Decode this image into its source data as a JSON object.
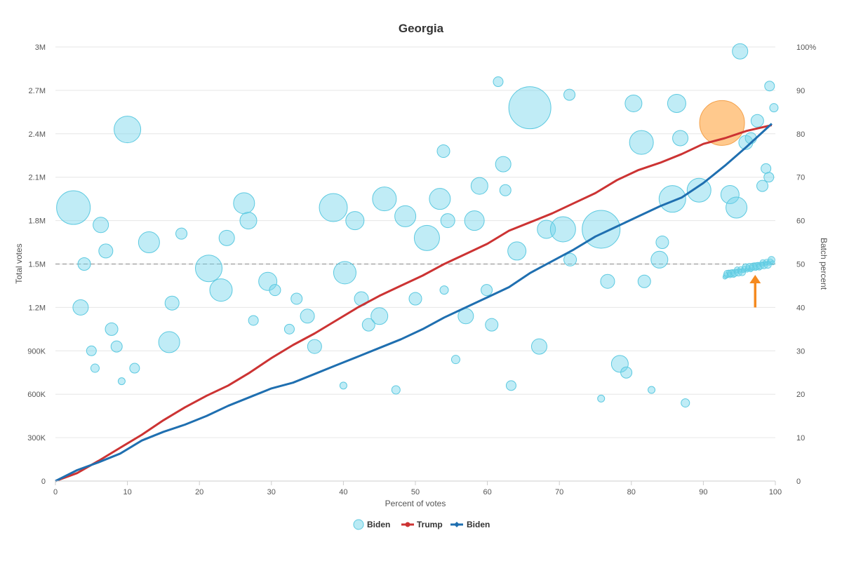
{
  "chart_data": {
    "type": "scatter",
    "title": "Georgia",
    "xlabel": "Percent of votes",
    "ylabel_left": "Total votes",
    "ylabel_right": "Batch percent",
    "xlim": [
      0,
      100
    ],
    "ylim_left": [
      0,
      3000000
    ],
    "ylim_right": [
      0,
      100
    ],
    "x_ticks": [
      "0",
      "10",
      "20",
      "30",
      "40",
      "50",
      "60",
      "70",
      "80",
      "90",
      "100"
    ],
    "y_left_ticks": [
      "0",
      "300K",
      "600K",
      "900K",
      "1.2M",
      "1.5M",
      "1.8M",
      "2.1M",
      "2.4M",
      "2.7M",
      "3M"
    ],
    "y_right_ticks": [
      "0",
      "10",
      "20",
      "30",
      "40",
      "50",
      "60",
      "70",
      "80",
      "90",
      "100%"
    ],
    "reference_line": {
      "axis": "right",
      "value": 50
    },
    "colors": {
      "bubble": "#74d5ea",
      "bubble_highlight": "#ffb25c",
      "trump": "#cc3333",
      "biden": "#1f6fb0",
      "grid": "#e6e6e6",
      "arrow": "#f58a1f"
    },
    "legend": [
      "Biden",
      "Trump",
      "Biden"
    ],
    "series": [
      {
        "name": "Trump",
        "axis": "left",
        "type": "line",
        "x": [
          0,
          3,
          6,
          9,
          12,
          15,
          18,
          21,
          24,
          27,
          30,
          33,
          36,
          39,
          42,
          45,
          48,
          51,
          54,
          57,
          60,
          63,
          66,
          69,
          72,
          75,
          78,
          81,
          84,
          87,
          90,
          93,
          96,
          99.5
        ],
        "values": [
          0,
          55000,
          140000,
          230000,
          320000,
          420000,
          510000,
          590000,
          660000,
          750000,
          850000,
          940000,
          1020000,
          1110000,
          1200000,
          1280000,
          1350000,
          1420000,
          1500000,
          1570000,
          1640000,
          1730000,
          1790000,
          1850000,
          1920000,
          1990000,
          2080000,
          2150000,
          2200000,
          2260000,
          2330000,
          2370000,
          2420000,
          2460000
        ]
      },
      {
        "name": "Biden",
        "axis": "left",
        "type": "line",
        "x": [
          0,
          3,
          6,
          9,
          12,
          15,
          18,
          21,
          24,
          27,
          30,
          33,
          36,
          39,
          42,
          45,
          48,
          51,
          54,
          57,
          60,
          63,
          66,
          69,
          72,
          75,
          78,
          81,
          84,
          87,
          90,
          93,
          96,
          99.5
        ],
        "values": [
          0,
          75000,
          130000,
          190000,
          280000,
          340000,
          390000,
          450000,
          520000,
          580000,
          640000,
          680000,
          740000,
          800000,
          860000,
          920000,
          980000,
          1050000,
          1130000,
          1200000,
          1270000,
          1340000,
          1440000,
          1520000,
          1600000,
          1690000,
          1760000,
          1830000,
          1900000,
          1960000,
          2060000,
          2180000,
          2310000,
          2470000
        ]
      },
      {
        "name": "Biden",
        "axis": "right",
        "type": "bubble",
        "points": [
          {
            "x": 2.5,
            "y": 63,
            "r": 24
          },
          {
            "x": 10,
            "y": 81,
            "r": 19
          },
          {
            "x": 3.5,
            "y": 40,
            "r": 11
          },
          {
            "x": 4,
            "y": 50,
            "r": 9
          },
          {
            "x": 6.3,
            "y": 59,
            "r": 11
          },
          {
            "x": 7,
            "y": 53,
            "r": 10
          },
          {
            "x": 7.8,
            "y": 35,
            "r": 9
          },
          {
            "x": 8.5,
            "y": 31,
            "r": 8
          },
          {
            "x": 5,
            "y": 30,
            "r": 7
          },
          {
            "x": 11,
            "y": 26,
            "r": 7
          },
          {
            "x": 13,
            "y": 55,
            "r": 15
          },
          {
            "x": 15.8,
            "y": 32,
            "r": 15
          },
          {
            "x": 16.2,
            "y": 41,
            "r": 10
          },
          {
            "x": 17.5,
            "y": 57,
            "r": 8
          },
          {
            "x": 21.3,
            "y": 49,
            "r": 19
          },
          {
            "x": 23,
            "y": 44,
            "r": 16
          },
          {
            "x": 23.8,
            "y": 56,
            "r": 11
          },
          {
            "x": 26.2,
            "y": 64,
            "r": 15
          },
          {
            "x": 26.8,
            "y": 60,
            "r": 12
          },
          {
            "x": 29.5,
            "y": 46,
            "r": 13
          },
          {
            "x": 33.5,
            "y": 42,
            "r": 8
          },
          {
            "x": 35,
            "y": 38,
            "r": 10
          },
          {
            "x": 36,
            "y": 31,
            "r": 10
          },
          {
            "x": 38.6,
            "y": 63,
            "r": 20
          },
          {
            "x": 40.2,
            "y": 48,
            "r": 16
          },
          {
            "x": 41.6,
            "y": 60,
            "r": 13
          },
          {
            "x": 42.5,
            "y": 42,
            "r": 10
          },
          {
            "x": 43.5,
            "y": 36,
            "r": 9
          },
          {
            "x": 45,
            "y": 38,
            "r": 12
          },
          {
            "x": 45.7,
            "y": 65,
            "r": 17
          },
          {
            "x": 48.6,
            "y": 61,
            "r": 15
          },
          {
            "x": 50,
            "y": 42,
            "r": 9
          },
          {
            "x": 51.6,
            "y": 56,
            "r": 18
          },
          {
            "x": 53.4,
            "y": 65,
            "r": 15
          },
          {
            "x": 53.9,
            "y": 76,
            "r": 9
          },
          {
            "x": 54.5,
            "y": 60,
            "r": 10
          },
          {
            "x": 57,
            "y": 38,
            "r": 11
          },
          {
            "x": 58.2,
            "y": 60,
            "r": 14
          },
          {
            "x": 58.9,
            "y": 68,
            "r": 12
          },
          {
            "x": 59.9,
            "y": 44,
            "r": 8
          },
          {
            "x": 60.6,
            "y": 36,
            "r": 9
          },
          {
            "x": 61.5,
            "y": 92,
            "r": 7
          },
          {
            "x": 62.2,
            "y": 73,
            "r": 11
          },
          {
            "x": 62.5,
            "y": 67,
            "r": 8
          },
          {
            "x": 64.1,
            "y": 53,
            "r": 13
          },
          {
            "x": 65.9,
            "y": 86,
            "r": 30
          },
          {
            "x": 67.2,
            "y": 31,
            "r": 11
          },
          {
            "x": 68.2,
            "y": 58,
            "r": 13
          },
          {
            "x": 70.5,
            "y": 58,
            "r": 18
          },
          {
            "x": 71.4,
            "y": 89,
            "r": 8
          },
          {
            "x": 71.5,
            "y": 51,
            "r": 9
          },
          {
            "x": 75.8,
            "y": 58,
            "r": 27
          },
          {
            "x": 76.7,
            "y": 46,
            "r": 10
          },
          {
            "x": 78.4,
            "y": 27,
            "r": 12
          },
          {
            "x": 79.3,
            "y": 25,
            "r": 8
          },
          {
            "x": 80.3,
            "y": 87,
            "r": 12
          },
          {
            "x": 81.4,
            "y": 78,
            "r": 17
          },
          {
            "x": 81.8,
            "y": 46,
            "r": 9
          },
          {
            "x": 83.9,
            "y": 51,
            "r": 12
          },
          {
            "x": 84.3,
            "y": 55,
            "r": 9
          },
          {
            "x": 85.7,
            "y": 65,
            "r": 19
          },
          {
            "x": 86.3,
            "y": 87,
            "r": 13
          },
          {
            "x": 86.8,
            "y": 79,
            "r": 11
          },
          {
            "x": 89.4,
            "y": 67,
            "r": 17
          },
          {
            "x": 93.7,
            "y": 66,
            "r": 13
          },
          {
            "x": 94.6,
            "y": 63,
            "r": 15
          },
          {
            "x": 95.1,
            "y": 99,
            "r": 11
          },
          {
            "x": 95.9,
            "y": 78,
            "r": 10
          },
          {
            "x": 96.6,
            "y": 79,
            "r": 8
          },
          {
            "x": 97.5,
            "y": 83,
            "r": 9
          },
          {
            "x": 98.2,
            "y": 68,
            "r": 8
          },
          {
            "x": 98.7,
            "y": 72,
            "r": 7
          },
          {
            "x": 99.1,
            "y": 70,
            "r": 7
          },
          {
            "x": 99.2,
            "y": 91,
            "r": 7
          },
          {
            "x": 99.8,
            "y": 86,
            "r": 6
          },
          {
            "x": 30.5,
            "y": 44,
            "r": 8
          },
          {
            "x": 27.5,
            "y": 37,
            "r": 7
          },
          {
            "x": 32.5,
            "y": 35,
            "r": 7
          },
          {
            "x": 47.3,
            "y": 21,
            "r": 6
          },
          {
            "x": 75.8,
            "y": 19,
            "r": 5
          },
          {
            "x": 87.5,
            "y": 18,
            "r": 6
          },
          {
            "x": 82.8,
            "y": 21,
            "r": 5
          },
          {
            "x": 55.6,
            "y": 28,
            "r": 6
          },
          {
            "x": 63.3,
            "y": 22,
            "r": 7
          },
          {
            "x": 54.0,
            "y": 44,
            "r": 6
          },
          {
            "x": 40.0,
            "y": 22,
            "r": 5
          },
          {
            "x": 5.5,
            "y": 26,
            "r": 6
          },
          {
            "x": 9.2,
            "y": 23,
            "r": 5
          }
        ]
      },
      {
        "name": "Biden",
        "axis": "right",
        "type": "bubble",
        "highlight": true,
        "points": [
          {
            "x": 92.6,
            "y": 82.5,
            "r": 32
          }
        ]
      }
    ],
    "annotation": {
      "type": "arrow",
      "x": 97.2,
      "y_from": 40,
      "y_to": 47.5
    }
  }
}
